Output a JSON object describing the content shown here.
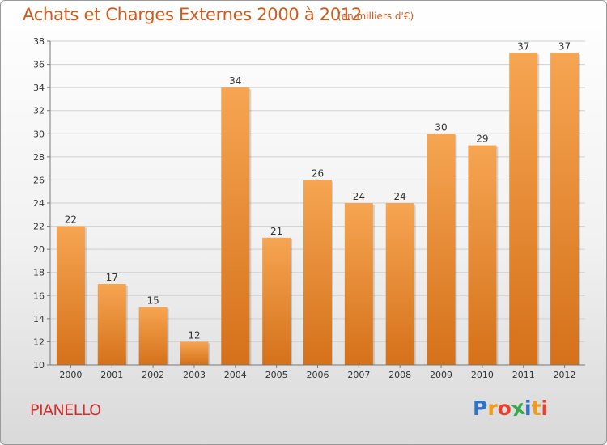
{
  "header": {
    "title": "Achats et Charges Externes 2000 à 2012",
    "subtitle": "(en milliers d'€)"
  },
  "footer": {
    "place": "PIANELLO",
    "logo_letters": [
      "P",
      "r",
      "o",
      "x",
      "i",
      "t",
      "i"
    ],
    "logo_colors": [
      "#2f73c8",
      "#f19b1d",
      "#e8412b",
      "#39a84a",
      "#2f73c8",
      "#f19b1d",
      "#e8412b"
    ]
  },
  "colors": {
    "bar_top": "#f6a552",
    "bar_bottom": "#d5711a",
    "title": "#cf5a1a",
    "grid": "#d0d0d0"
  },
  "chart_data": {
    "type": "bar",
    "title": "Achats et Charges Externes 2000 à 2012",
    "xlabel": "",
    "ylabel": "",
    "categories": [
      "2000",
      "2001",
      "2002",
      "2003",
      "2004",
      "2005",
      "2006",
      "2007",
      "2008",
      "2009",
      "2010",
      "2011",
      "2012"
    ],
    "values": [
      22,
      17,
      15,
      12,
      34,
      21,
      26,
      24,
      24,
      30,
      29,
      37,
      37
    ],
    "ylim": [
      10,
      38
    ],
    "yticks": [
      10,
      12,
      14,
      16,
      18,
      20,
      22,
      24,
      26,
      28,
      30,
      32,
      34,
      36,
      38
    ],
    "grid": true,
    "data_labels": true
  }
}
